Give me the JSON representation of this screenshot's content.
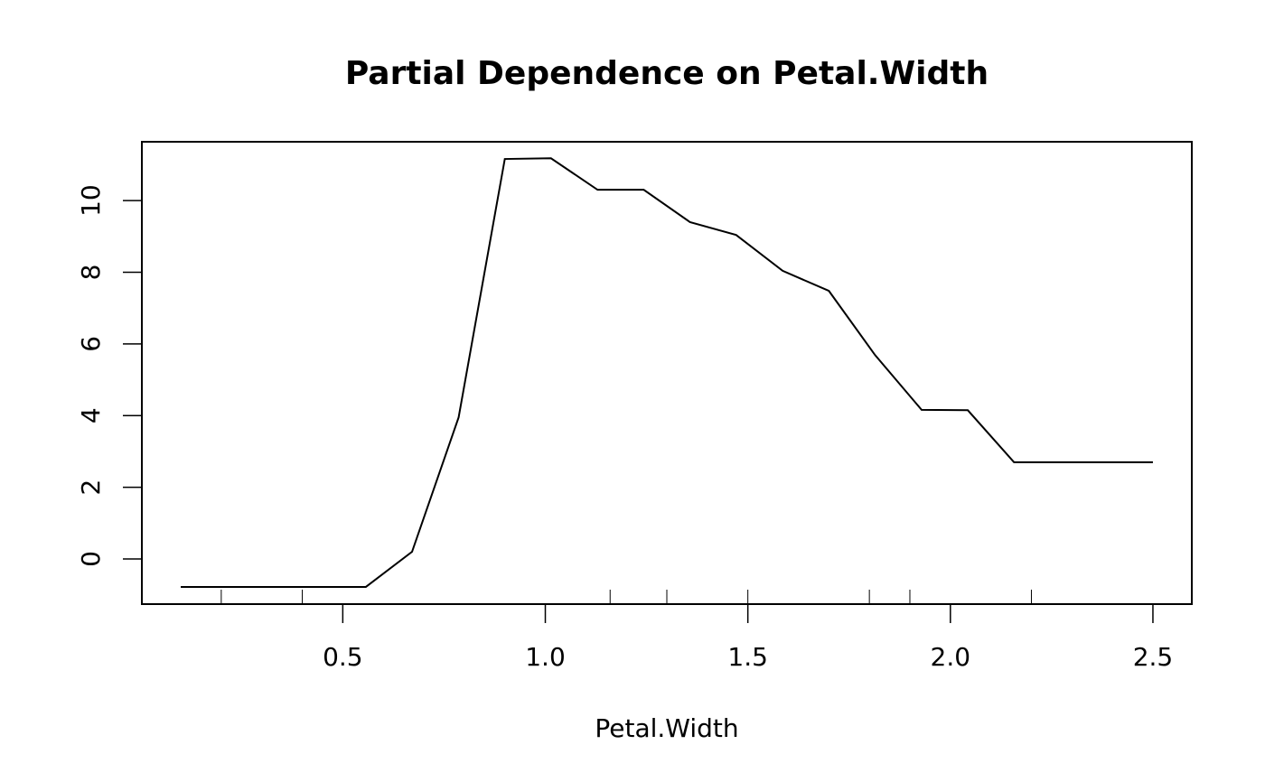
{
  "chart_data": {
    "type": "line",
    "title": "Partial Dependence on Petal.Width",
    "x_label": "Petal.Width",
    "x": [
      0.1,
      0.214,
      0.329,
      0.443,
      0.557,
      0.671,
      0.786,
      0.9,
      1.014,
      1.129,
      1.243,
      1.357,
      1.471,
      1.586,
      1.7,
      1.814,
      1.929,
      2.043,
      2.157,
      2.271,
      2.386,
      2.5
    ],
    "series": [
      {
        "color": "#000000",
        "values": [
          -0.78,
          -0.78,
          -0.78,
          -0.78,
          -0.78,
          0.2,
          3.95,
          11.16,
          11.18,
          10.3,
          10.3,
          9.4,
          9.04,
          8.04,
          7.48,
          5.69,
          4.16,
          4.15,
          2.7,
          2.7,
          2.7,
          2.7
        ]
      }
    ],
    "rug": [
      0.2,
      0.4,
      1.16,
      1.3,
      1.5,
      1.8,
      1.9,
      2.2
    ],
    "xlim": [
      0.004,
      2.596
    ],
    "ylim": [
      -1.26,
      11.64
    ],
    "xticks": [
      {
        "value": 0.5,
        "label": "0.5"
      },
      {
        "value": 1,
        "label": "1.0"
      },
      {
        "value": 1.5,
        "label": "1.5"
      },
      {
        "value": 2,
        "label": "2.0"
      },
      {
        "value": 2.5,
        "label": "2.5"
      }
    ],
    "yticks": [
      0,
      2,
      4,
      6,
      8,
      10
    ]
  }
}
